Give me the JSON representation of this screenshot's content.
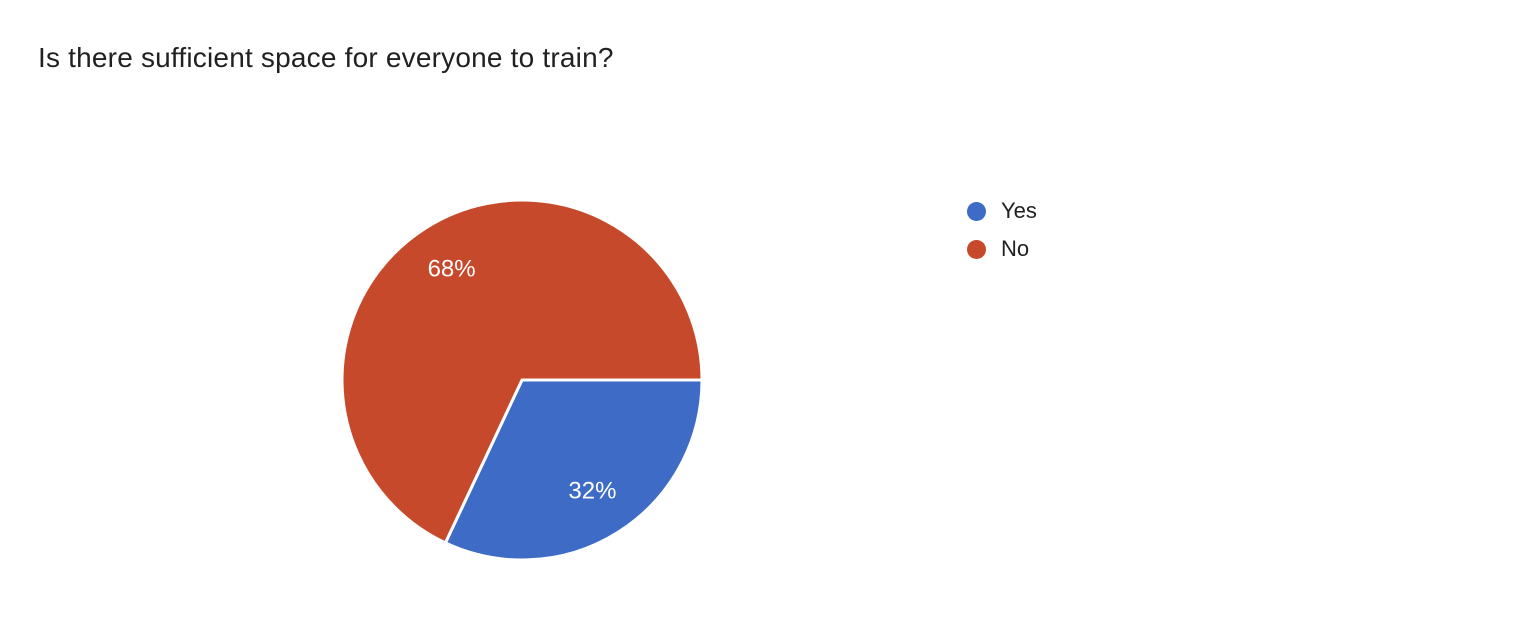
{
  "chart_data": {
    "type": "pie",
    "title": "Is there sufficient space for everyone to train?",
    "slices": [
      {
        "label": "Yes",
        "value": 32,
        "percent_label": "32%",
        "color": "#3d6bc5"
      },
      {
        "label": "No",
        "value": 68,
        "percent_label": "68%",
        "color": "#c7492c"
      }
    ],
    "start_angle_deg": 0,
    "direction": "clockwise",
    "legend_position": "right",
    "slice_label_color": "#ffffff",
    "slice_border_color": "#ffffff",
    "title_color": "#212121",
    "legend_text_color": "#212121",
    "background_color": "#ffffff"
  }
}
